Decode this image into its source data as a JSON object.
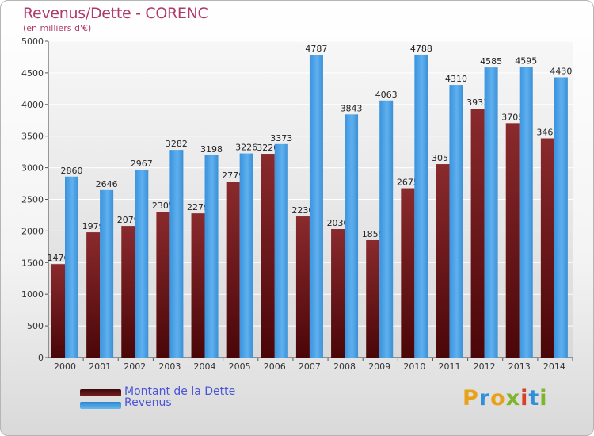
{
  "header": {
    "title": "Revenus/Dette - CORENC",
    "subtitle": "(en milliers d'€)"
  },
  "chart_data": {
    "type": "bar",
    "categories": [
      "2000",
      "2001",
      "2002",
      "2003",
      "2004",
      "2005",
      "2006",
      "2007",
      "2008",
      "2009",
      "2010",
      "2011",
      "2012",
      "2013",
      "2014"
    ],
    "series": [
      {
        "name": "Montant de la Dette",
        "color": "#7a1f22",
        "values": [
          1476,
          1979,
          2079,
          2305,
          2279,
          2779,
          3220,
          2230,
          2030,
          1855,
          2675,
          3057,
          3933,
          3705,
          3465
        ],
        "labels": [
          "1476",
          "1979",
          "2079",
          "2305",
          "2279",
          "2779",
          "3220",
          "2230",
          "2030",
          "1855",
          "2675",
          "3057",
          "3933",
          "3705",
          "3465"
        ]
      },
      {
        "name": "Revenus",
        "color": "#4ea3e4",
        "values": [
          2860,
          2646,
          2967,
          3282,
          3198,
          3226,
          3373,
          4787,
          3843,
          4063,
          4788,
          4310,
          4585,
          4595,
          4430
        ],
        "labels": [
          "2860",
          "2646",
          "2967",
          "3282",
          "3198",
          "3226",
          "3373",
          "4787",
          "3843",
          "4063",
          "4788",
          "4310",
          "4585",
          "4595",
          "4430"
        ]
      }
    ],
    "ylim": [
      0,
      5000
    ],
    "yticks": [
      "0",
      "500",
      "1000",
      "1500",
      "2000",
      "2500",
      "3000",
      "3500",
      "4000",
      "4500",
      "5000"
    ],
    "grid": true,
    "legend_position": "bottom-left"
  },
  "legend": {
    "debt_label": "Montant de la Dette",
    "revenue_label": "Revenus"
  },
  "logo": {
    "letters": [
      "P",
      "r",
      "o",
      "x",
      "i",
      "t",
      "i"
    ],
    "colors": [
      "#e8a21a",
      "#2f8fd8",
      "#e8a21a",
      "#7fb52a",
      "#d8402a",
      "#2f8fd8",
      "#7fb52a"
    ]
  }
}
